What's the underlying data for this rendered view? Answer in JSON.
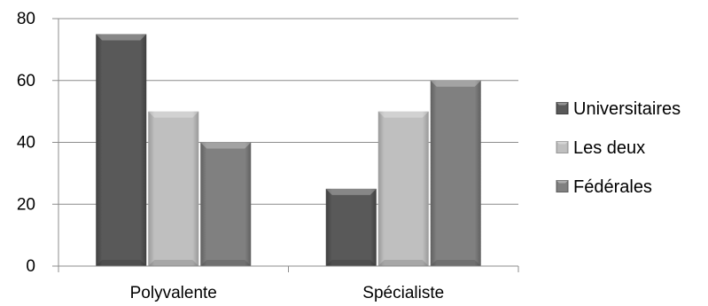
{
  "chart_data": {
    "type": "bar",
    "categories": [
      "Polyvalente",
      "Spécialiste"
    ],
    "series": [
      {
        "name": "Universitaires",
        "values": [
          75,
          25
        ],
        "color": "#595959",
        "edge": "#3f3f3f"
      },
      {
        "name": "Les deux",
        "values": [
          50,
          50
        ],
        "color": "#bfbfbf",
        "edge": "#999999"
      },
      {
        "name": "Fédérales",
        "values": [
          40,
          60
        ],
        "color": "#808080",
        "edge": "#606060"
      }
    ],
    "ylim": [
      0,
      80
    ],
    "yticks": [
      0,
      20,
      40,
      60,
      80
    ],
    "grid": true,
    "legend": "right"
  }
}
